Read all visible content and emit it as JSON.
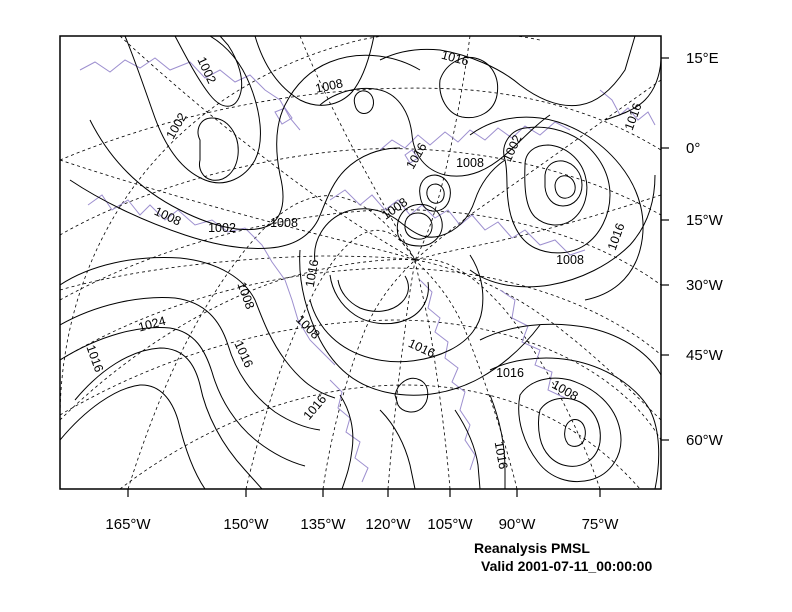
{
  "map": {
    "colors": {
      "contour": "#000000",
      "coastline": "#9d8fcf",
      "grid": "#000000",
      "frame": "#000000"
    },
    "contour_labels": [
      "1016",
      "1008",
      "1002",
      "1002",
      "1008",
      "1002",
      "1008",
      "1016",
      "1008",
      "1002",
      "1008",
      "1016",
      "1016",
      "1008",
      "1016",
      "1008",
      "1024",
      "1016",
      "1016",
      "1008",
      "1016",
      "1016",
      "1016"
    ],
    "right_axis_labels": [
      "15°E",
      "0°",
      "15°W",
      "30°W",
      "45°W",
      "60°W"
    ],
    "bottom_axis_labels": [
      "165°W",
      "150°W",
      "135°W",
      "120°W",
      "105°W",
      "90°W",
      "75°W"
    ],
    "caption_line1": "Reanalysis PMSL",
    "caption_line2": "Valid 2001-07-11_00:00:00"
  }
}
